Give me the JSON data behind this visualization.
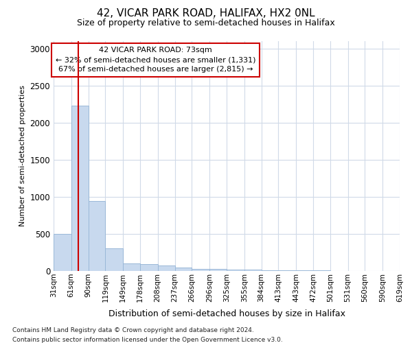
{
  "title1": "42, VICAR PARK ROAD, HALIFAX, HX2 0NL",
  "title2": "Size of property relative to semi-detached houses in Halifax",
  "xlabel": "Distribution of semi-detached houses by size in Halifax",
  "ylabel": "Number of semi-detached properties",
  "footnote1": "Contains HM Land Registry data © Crown copyright and database right 2024.",
  "footnote2": "Contains public sector information licensed under the Open Government Licence v3.0.",
  "annotation_line1": "42 VICAR PARK ROAD: 73sqm",
  "annotation_line2": "← 32% of semi-detached houses are smaller (1,331)",
  "annotation_line3": "67% of semi-detached houses are larger (2,815) →",
  "property_size": 73,
  "bins": [
    31,
    61,
    90,
    119,
    149,
    178,
    208,
    237,
    266,
    296,
    325,
    355,
    384,
    413,
    443,
    472,
    501,
    531,
    560,
    590,
    619
  ],
  "bin_labels": [
    "31sqm",
    "61sqm",
    "90sqm",
    "119sqm",
    "149sqm",
    "178sqm",
    "208sqm",
    "237sqm",
    "266sqm",
    "296sqm",
    "325sqm",
    "355sqm",
    "384sqm",
    "413sqm",
    "443sqm",
    "472sqm",
    "501sqm",
    "531sqm",
    "560sqm",
    "590sqm",
    "619sqm"
  ],
  "values": [
    500,
    2230,
    940,
    310,
    100,
    90,
    70,
    45,
    30,
    25,
    20,
    15,
    10,
    8,
    6,
    5,
    4,
    3,
    2,
    1
  ],
  "bar_color": "#c8d9ee",
  "bar_edge_color": "#9ab8d8",
  "vline_color": "#cc0000",
  "background_color": "#ffffff",
  "grid_color": "#d0dae8",
  "ylim": [
    0,
    3100
  ],
  "yticks": [
    0,
    500,
    1000,
    1500,
    2000,
    2500,
    3000
  ]
}
